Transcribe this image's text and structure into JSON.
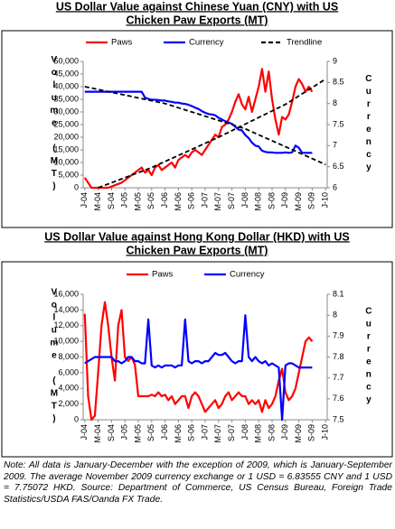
{
  "chart_data": [
    {
      "type": "line",
      "title": [
        "US Dollar Value against Chinese Yuan (CNY) with US",
        "Chicken Paw Exports (MT)"
      ],
      "y_label": "Volume (MT)",
      "y2_label": "Currency",
      "categories": [
        "J-04",
        null,
        null,
        null,
        "M-04",
        null,
        null,
        null,
        "S-04",
        null,
        null,
        null,
        "J-05",
        null,
        null,
        null,
        "M-05",
        null,
        null,
        null,
        "S-05",
        null,
        null,
        null,
        "J-06",
        null,
        null,
        null,
        "M-06",
        null,
        null,
        null,
        "S-06",
        null,
        null,
        null,
        "J-07",
        null,
        null,
        null,
        "M-07",
        null,
        null,
        null,
        "S-07",
        null,
        null,
        null,
        "J-08",
        null,
        null,
        null,
        "M-08",
        null,
        null,
        null,
        "S-08",
        null,
        null,
        null,
        "J-09",
        null,
        null,
        null,
        "M-09",
        null,
        null,
        null,
        "S-09",
        null,
        null,
        null,
        "J-10"
      ],
      "ylim": [
        0,
        50000
      ],
      "yticks": [
        0,
        {
          "value": 5000,
          "label": "5,000"
        },
        {
          "value": 10000,
          "label": "10,000"
        },
        {
          "value": 15000,
          "label": "15,000"
        },
        {
          "value": 20000,
          "label": "20,000"
        },
        {
          "value": 25000,
          "label": "25,000"
        },
        {
          "value": 30000,
          "label": "30,000"
        },
        {
          "value": 35000,
          "label": "35,000"
        },
        {
          "value": 40000,
          "label": "40,000"
        },
        {
          "value": 45000,
          "label": "45,000"
        },
        {
          "value": 50000,
          "label": "50,000"
        }
      ],
      "y2lim": [
        6,
        9
      ],
      "y2ticks": [
        6,
        6.5,
        7,
        7.5,
        8,
        8.5,
        9
      ],
      "series": [
        {
          "name": "Paws",
          "color": "#ff0000",
          "axis": "y",
          "values": [
            4000,
            2000,
            0,
            0,
            0,
            0,
            0,
            0,
            500,
            1000,
            1500,
            2000,
            3000,
            4000,
            5000,
            6000,
            7000,
            8000,
            6000,
            7000,
            5000,
            8000,
            9000,
            7000,
            8000,
            9000,
            10000,
            8000,
            11000,
            12000,
            13000,
            12000,
            14000,
            15000,
            14000,
            13000,
            15000,
            17000,
            19000,
            21000,
            20000,
            24000,
            25000,
            27000,
            30000,
            34000,
            37000,
            33000,
            31000,
            36000,
            30000,
            35000,
            40000,
            47000,
            38000,
            46000,
            35000,
            27000,
            21000,
            28000,
            27000,
            29000,
            34000,
            40000,
            43000,
            41000,
            38000,
            40000,
            38000,
            null,
            null,
            null,
            null
          ]
        },
        {
          "name": "Currency",
          "color": "#0000ff",
          "axis": "y2",
          "values": [
            8.28,
            8.28,
            8.28,
            8.28,
            8.28,
            8.28,
            8.28,
            8.28,
            8.28,
            8.28,
            8.28,
            8.28,
            8.28,
            8.28,
            8.28,
            8.28,
            8.28,
            8.28,
            8.14,
            8.11,
            8.09,
            8.09,
            8.08,
            8.07,
            8.07,
            8.05,
            8.04,
            8.02,
            8.02,
            8.0,
            7.99,
            7.97,
            7.94,
            7.9,
            7.87,
            7.82,
            7.78,
            7.75,
            7.74,
            7.72,
            7.66,
            7.62,
            7.58,
            7.55,
            7.52,
            7.45,
            7.38,
            7.36,
            7.25,
            7.18,
            7.07,
            7.0,
            6.98,
            6.88,
            6.85,
            6.84,
            6.84,
            6.83,
            6.83,
            6.83,
            6.84,
            6.83,
            6.84,
            7.0,
            6.95,
            6.83,
            6.83,
            6.83,
            6.83,
            null,
            null,
            null,
            null
          ]
        }
      ],
      "trendline": {
        "name": "Trendline",
        "color": "#000000",
        "lines": [
          {
            "axis": "y",
            "x": [
              4,
              20,
              40,
              60,
              72
            ],
            "values": [
              0,
              8000,
              20000,
              33000,
              43000
            ]
          },
          {
            "axis": "y2",
            "x": [
              0,
              24,
              48,
              72
            ],
            "values": [
              8.4,
              8.0,
              7.4,
              6.55
            ]
          }
        ]
      }
    },
    {
      "type": "line",
      "title": [
        "US Dollar Value against Hong Kong Dollar (HKD) with US",
        "Chicken Paw Exports (MT)"
      ],
      "y_label": "Volume (MT)",
      "y2_label": "Currency",
      "categories": [
        "J-04",
        null,
        null,
        null,
        "M-04",
        null,
        null,
        null,
        "S-04",
        null,
        null,
        null,
        "J-05",
        null,
        null,
        null,
        "M-05",
        null,
        null,
        null,
        "S-05",
        null,
        null,
        null,
        "J-06",
        null,
        null,
        null,
        "M-06",
        null,
        null,
        null,
        "S-06",
        null,
        null,
        null,
        "J-07",
        null,
        null,
        null,
        "M-07",
        null,
        null,
        null,
        "S-07",
        null,
        null,
        null,
        "J-08",
        null,
        null,
        null,
        "M-08",
        null,
        null,
        null,
        "S-08",
        null,
        null,
        null,
        "J-09",
        null,
        null,
        null,
        "M-09",
        null,
        null,
        null,
        "S-09",
        null,
        null,
        null,
        "J-10"
      ],
      "ylim": [
        0,
        16000
      ],
      "yticks": [
        0,
        {
          "value": 2000,
          "label": "2,000"
        },
        {
          "value": 4000,
          "label": "4,000"
        },
        {
          "value": 6000,
          "label": "6,000"
        },
        {
          "value": 8000,
          "label": "8,000"
        },
        {
          "value": 10000,
          "label": "10,000"
        },
        {
          "value": 12000,
          "label": "12,000"
        },
        {
          "value": 14000,
          "label": "14,000"
        },
        {
          "value": 16000,
          "label": "16,000"
        }
      ],
      "y2lim": [
        7.5,
        8.1
      ],
      "y2ticks": [
        7.5,
        7.6,
        7.7,
        7.8,
        7.9,
        8,
        8.1
      ],
      "series": [
        {
          "name": "Paws",
          "color": "#ff0000",
          "axis": "y",
          "values": [
            13500,
            3000,
            0,
            500,
            6000,
            12000,
            15000,
            12000,
            8000,
            5000,
            12000,
            14000,
            8000,
            7500,
            8000,
            7000,
            3000,
            3000,
            3000,
            3000,
            3200,
            3000,
            3500,
            3000,
            3200,
            2500,
            3000,
            2000,
            2500,
            3000,
            3000,
            1500,
            3000,
            3500,
            3000,
            2000,
            1000,
            1500,
            2000,
            2500,
            1500,
            2000,
            3000,
            3500,
            2500,
            3000,
            3500,
            3000,
            3000,
            2000,
            2500,
            2000,
            2500,
            1000,
            2500,
            1500,
            2000,
            3000,
            5000,
            6500,
            3500,
            2500,
            3000,
            4000,
            6000,
            8000,
            10000,
            10500,
            10000,
            null,
            null,
            null,
            null
          ]
        },
        {
          "name": "Currency",
          "color": "#0000ff",
          "axis": "y2",
          "values": [
            7.77,
            7.78,
            7.79,
            7.8,
            7.8,
            7.8,
            7.8,
            7.8,
            7.8,
            7.78,
            7.78,
            7.77,
            7.78,
            7.8,
            7.8,
            7.78,
            7.78,
            7.77,
            7.77,
            7.98,
            7.76,
            7.75,
            7.76,
            7.75,
            7.76,
            7.76,
            7.76,
            7.75,
            7.76,
            7.76,
            7.98,
            7.78,
            7.77,
            7.78,
            7.78,
            7.77,
            7.78,
            7.78,
            7.8,
            7.82,
            7.81,
            7.81,
            7.82,
            7.8,
            7.78,
            7.77,
            7.78,
            7.78,
            8.0,
            7.8,
            7.78,
            7.8,
            7.78,
            7.77,
            7.78,
            7.76,
            7.77,
            7.76,
            7.75,
            7.5,
            7.76,
            7.77,
            7.77,
            7.76,
            7.75,
            7.75,
            7.75,
            7.75,
            7.75,
            null,
            null,
            null,
            null
          ]
        }
      ]
    }
  ],
  "note": "Note: All data is January-December with the exception of 2009, which is January-September 2009. The average November 2009 currency exchange or 1 USD = 6.83555 CNY and 1 USD = 7.75072 HKD. Source: Department of Commerce, US Census Bureau, Foreign Trade Statistics/USDA FAS/Oanda FX Trade."
}
